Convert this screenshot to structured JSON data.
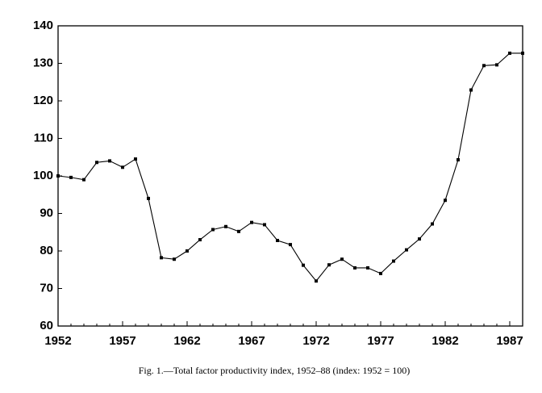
{
  "chart_data": {
    "type": "line",
    "caption": "Fig. 1.—Total factor productivity index, 1952–88 (index: 1952 = 100)",
    "x": [
      1952,
      1953,
      1954,
      1955,
      1956,
      1957,
      1958,
      1959,
      1960,
      1961,
      1962,
      1963,
      1964,
      1965,
      1966,
      1967,
      1968,
      1969,
      1970,
      1971,
      1972,
      1973,
      1974,
      1975,
      1976,
      1977,
      1978,
      1979,
      1980,
      1981,
      1982,
      1983,
      1984,
      1985,
      1986,
      1987,
      1988
    ],
    "values": [
      100,
      99.6,
      99,
      103.6,
      104,
      102.3,
      104.5,
      94,
      78.2,
      77.8,
      80,
      83,
      85.7,
      86.5,
      85.2,
      87.6,
      87,
      82.8,
      81.7,
      76.2,
      72,
      76.3,
      77.8,
      75.5,
      75.5,
      74,
      77.3,
      80.3,
      83.2,
      87.2,
      93.5,
      104.3,
      122.9,
      129.4,
      129.6,
      132.7,
      132.7
    ],
    "color": "#000000",
    "xlim": [
      1952,
      1988
    ],
    "xticks": [
      1952,
      1957,
      1962,
      1967,
      1972,
      1977,
      1982,
      1987
    ],
    "ylim": [
      60,
      140
    ],
    "yticks": [
      60,
      70,
      80,
      90,
      100,
      110,
      120,
      130,
      140
    ],
    "grid": false
  }
}
